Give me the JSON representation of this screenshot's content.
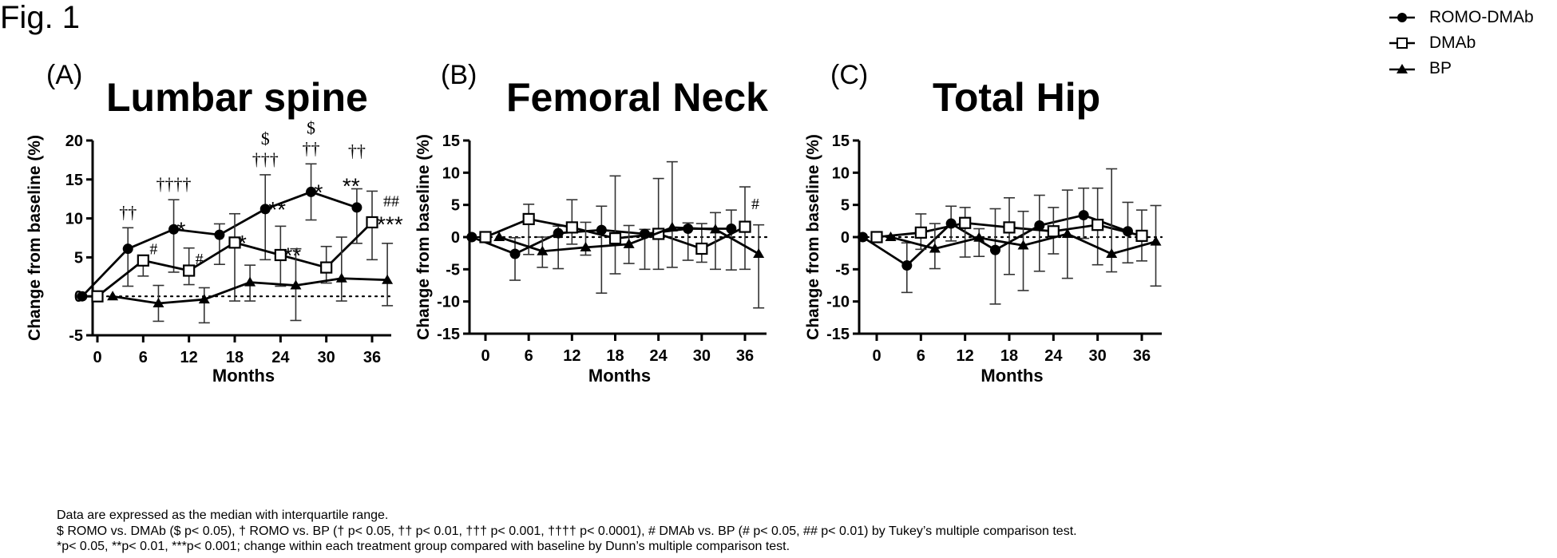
{
  "figure_label": "Fig. 1",
  "legend": [
    {
      "name": "ROMO-DMAb",
      "marker": "filled-circle"
    },
    {
      "name": "DMAb",
      "marker": "open-square"
    },
    {
      "name": "BP",
      "marker": "filled-triangle"
    }
  ],
  "footnotes": {
    "line1": "Data are expressed as the median with interquartile range.",
    "line2": "$ ROMO vs. DMAb ($ p< 0.05), † ROMO vs. BP († p< 0.05, †† p< 0.01, ††† p< 0.001, †††† p< 0.0001), # DMAb  vs. BP (# p< 0.05, ## p< 0.01) by Tukey’s multiple comparison test.",
    "line3": "*p< 0.05, **p< 0.01, ***p< 0.001; change within each treatment group compared with baseline by Dunn’s multiple comparison test."
  },
  "chart_data": [
    {
      "type": "line",
      "panel": "(A)",
      "title": "Lumbar spine",
      "xlabel": "Months",
      "ylabel": "Change from baseline (%)",
      "x": [
        0,
        6,
        12,
        18,
        24,
        30,
        36
      ],
      "xticks": [
        "0",
        "6",
        "12",
        "18",
        "24",
        "30",
        "36"
      ],
      "yticks": [
        "-5",
        "0",
        "5",
        "10",
        "15",
        "20"
      ],
      "ylim": [
        -5,
        20
      ],
      "reference_line": 0,
      "series": [
        {
          "name": "ROMO-DMAb",
          "values": [
            0,
            6.1,
            8.6,
            7.9,
            11.2,
            13.4,
            11.4
          ],
          "lower": [
            0,
            1.3,
            3.1,
            4.1,
            4.7,
            9.8,
            6.8
          ],
          "upper": [
            0,
            8.8,
            12.4,
            9.3,
            15.6,
            17.0,
            13.8
          ],
          "annotations": [
            "",
            "††",
            "†††† *",
            "",
            "$ ††† **",
            "$ †† *",
            "†† **"
          ]
        },
        {
          "name": "DMAb",
          "values": [
            0,
            4.6,
            3.3,
            6.9,
            5.3,
            3.7,
            9.5
          ],
          "lower": [
            0,
            2.6,
            1.5,
            -0.6,
            1.3,
            1.7,
            4.7
          ],
          "upper": [
            0,
            4.6,
            6.2,
            10.6,
            9.0,
            6.4,
            13.5
          ],
          "annotations": [
            "",
            "#",
            "#",
            "*",
            "**",
            "",
            "## ***"
          ]
        },
        {
          "name": "BP",
          "values": [
            0,
            -0.9,
            -0.4,
            1.8,
            1.4,
            2.3,
            2.1
          ],
          "lower": [
            0,
            -3.2,
            -3.4,
            -0.6,
            -3.1,
            -0.6,
            -1.2
          ],
          "upper": [
            0,
            1.4,
            1.1,
            4.0,
            6.1,
            7.6,
            6.8
          ],
          "annotations": [
            "",
            "",
            "",
            "",
            "",
            "",
            ""
          ]
        }
      ]
    },
    {
      "type": "line",
      "panel": "(B)",
      "title": "Femoral Neck",
      "xlabel": "Months",
      "ylabel": "Change from baseline (%)",
      "x": [
        0,
        6,
        12,
        18,
        24,
        30,
        36
      ],
      "xticks": [
        "0",
        "6",
        "12",
        "18",
        "24",
        "30",
        "36"
      ],
      "yticks": [
        "-15",
        "-10",
        "-5",
        "0",
        "5",
        "10",
        "15"
      ],
      "ylim": [
        -15,
        15
      ],
      "reference_line": 0,
      "series": [
        {
          "name": "ROMO-DMAb",
          "values": [
            0,
            -2.6,
            0.6,
            1.1,
            0.5,
            1.3,
            1.3
          ],
          "lower": [
            0,
            -6.7,
            -4.9,
            -8.7,
            -5.0,
            -3.6,
            -5.1
          ],
          "upper": [
            0,
            -0.1,
            1.7,
            4.8,
            1.2,
            2.2,
            4.2
          ],
          "annotations": [
            "",
            "",
            "",
            "",
            "",
            "",
            ""
          ]
        },
        {
          "name": "DMAb",
          "values": [
            0,
            2.8,
            1.5,
            -0.2,
            0.5,
            -1.8,
            1.6
          ],
          "lower": [
            0,
            -2.7,
            -1.1,
            -5.7,
            -5.0,
            -3.9,
            -5.0
          ],
          "upper": [
            0,
            5.1,
            5.8,
            9.5,
            9.1,
            2.1,
            7.8
          ],
          "annotations": [
            "",
            "",
            "",
            "",
            "",
            "",
            "#"
          ]
        },
        {
          "name": "BP",
          "values": [
            0,
            -2.2,
            -1.6,
            -1.1,
            1.5,
            1.2,
            -2.6
          ],
          "lower": [
            0,
            -4.7,
            -2.8,
            -4.1,
            -4.7,
            -5.0,
            -11.0
          ],
          "upper": [
            0,
            0.0,
            2.3,
            1.8,
            11.7,
            3.8,
            1.9
          ],
          "annotations": [
            "",
            "",
            "",
            "",
            "",
            "",
            ""
          ]
        }
      ]
    },
    {
      "type": "line",
      "panel": "(C)",
      "title": "Total Hip",
      "xlabel": "Months",
      "ylabel": "Change from baseline (%)",
      "x": [
        0,
        6,
        12,
        18,
        24,
        30,
        36
      ],
      "xticks": [
        "0",
        "6",
        "12",
        "18",
        "24",
        "30",
        "36"
      ],
      "yticks": [
        "-15",
        "-10",
        "-5",
        "0",
        "5",
        "10",
        "15"
      ],
      "ylim": [
        -15,
        15
      ],
      "reference_line": 0,
      "series": [
        {
          "name": "ROMO-DMAb",
          "values": [
            0,
            -4.4,
            2.1,
            -2.0,
            1.8,
            3.4,
            0.9
          ],
          "lower": [
            0,
            -8.6,
            -0.6,
            -10.4,
            -5.3,
            -0.2,
            -4.0
          ],
          "upper": [
            0,
            -0.9,
            4.8,
            4.4,
            6.5,
            7.6,
            5.4
          ],
          "annotations": [
            "",
            "",
            "",
            "",
            "",
            "",
            ""
          ]
        },
        {
          "name": "DMAb",
          "values": [
            0,
            0.7,
            2.2,
            1.5,
            0.9,
            1.9,
            0.2
          ],
          "lower": [
            0,
            -1.9,
            -3.1,
            -5.8,
            -2.6,
            -4.3,
            -3.7
          ],
          "upper": [
            0,
            3.6,
            4.6,
            6.1,
            4.6,
            7.6,
            4.2
          ],
          "annotations": [
            "",
            "",
            "",
            "",
            "",
            "",
            ""
          ]
        },
        {
          "name": "BP",
          "values": [
            0,
            -1.8,
            -0.1,
            -1.3,
            0.5,
            -2.6,
            -0.7
          ],
          "lower": [
            0,
            -4.9,
            -3.0,
            -8.3,
            -6.4,
            -5.4,
            -7.6
          ],
          "upper": [
            0,
            2.1,
            1.3,
            4.0,
            7.3,
            10.6,
            4.9
          ],
          "annotations": [
            "",
            "",
            "",
            "",
            "",
            "",
            ""
          ]
        }
      ]
    }
  ]
}
